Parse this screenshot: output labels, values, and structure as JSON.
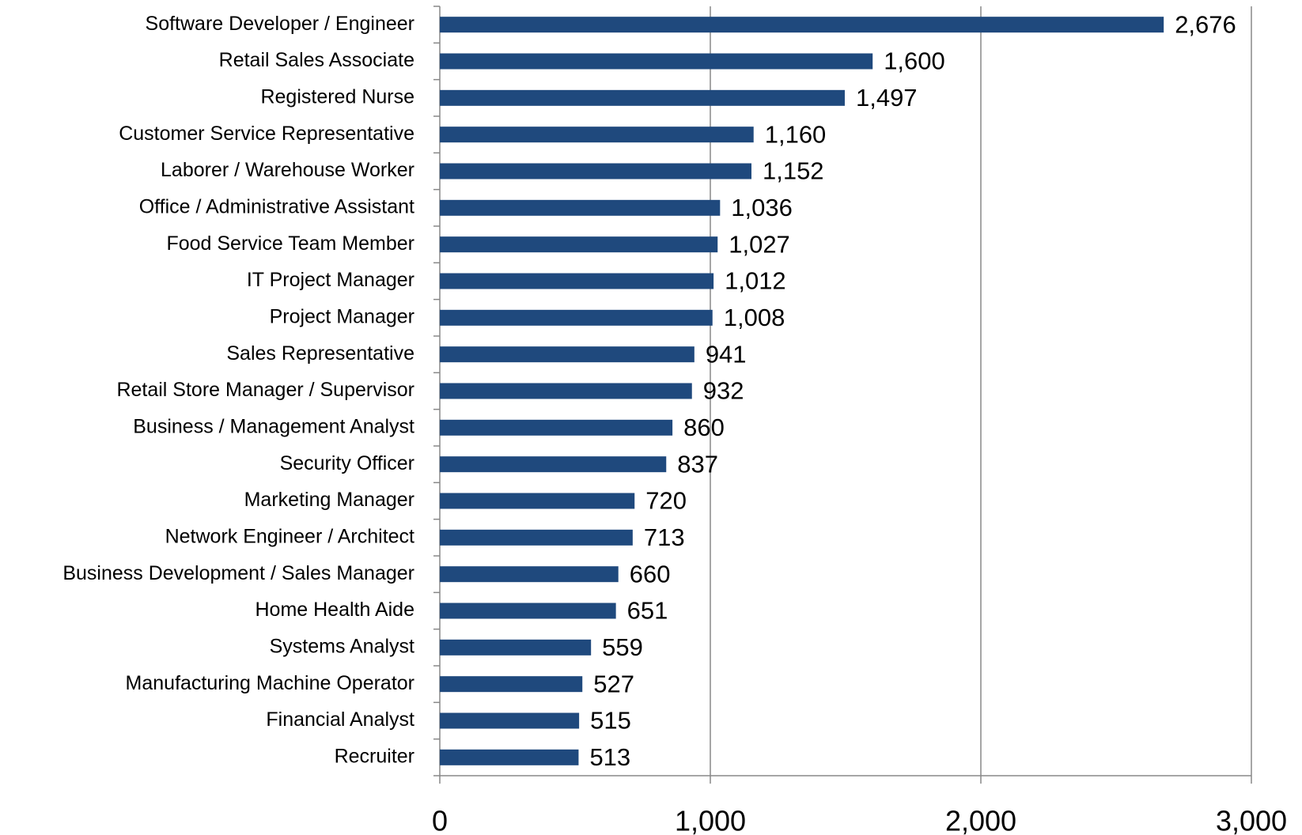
{
  "chart_data": {
    "type": "barh",
    "categories": [
      "Software Developer / Engineer",
      "Retail Sales Associate",
      "Registered Nurse",
      "Customer Service Representative",
      "Laborer / Warehouse Worker",
      "Office / Administrative Assistant",
      "Food Service Team Member",
      "IT Project Manager",
      "Project Manager",
      "Sales Representative",
      "Retail Store Manager / Supervisor",
      "Business / Management Analyst",
      "Security Officer",
      "Marketing Manager",
      "Network Engineer / Architect",
      "Business Development / Sales Manager",
      "Home Health Aide",
      "Systems Analyst",
      "Manufacturing Machine Operator",
      "Financial Analyst",
      "Recruiter"
    ],
    "values": [
      2676,
      1600,
      1497,
      1160,
      1152,
      1036,
      1027,
      1012,
      1008,
      941,
      932,
      860,
      837,
      720,
      713,
      660,
      651,
      559,
      527,
      515,
      513
    ],
    "value_labels": [
      "2,676",
      "1,600",
      "1,497",
      "1,160",
      "1,152",
      "1,036",
      "1,027",
      "1,012",
      "1,008",
      "941",
      "932",
      "860",
      "837",
      "720",
      "713",
      "660",
      "651",
      "559",
      "527",
      "515",
      "513"
    ],
    "color": "#1f497d",
    "xlim": [
      0,
      3000
    ],
    "xticks": [
      0,
      {
        "value": 1000,
        "label": "1,000"
      },
      {
        "value": 2000,
        "label": "2,000"
      },
      {
        "value": 3000,
        "label": "3,000"
      }
    ],
    "grid": true
  }
}
